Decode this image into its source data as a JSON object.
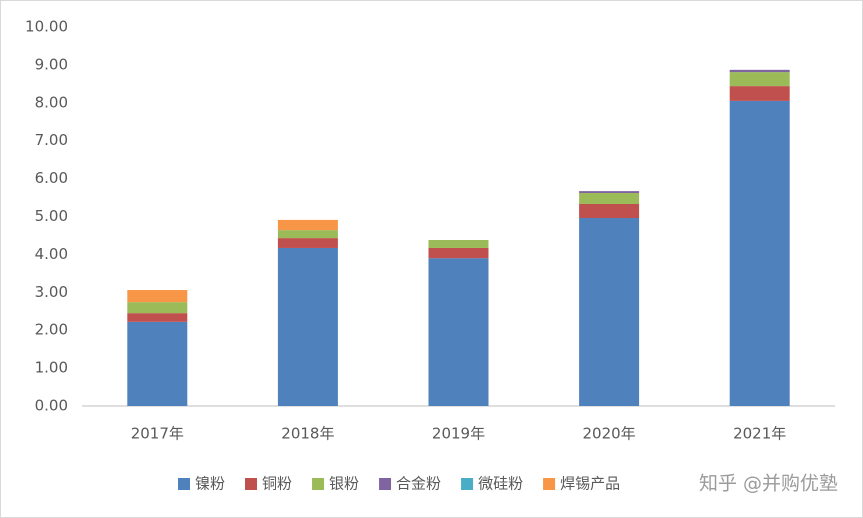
{
  "chart_data": {
    "type": "stacked_bar",
    "categories": [
      "2017年",
      "2018年",
      "2019年",
      "2020年",
      "2021年"
    ],
    "series": [
      {
        "name": "镍粉",
        "color": "#4f81bd",
        "values": [
          2.22,
          4.17,
          3.9,
          4.96,
          8.05
        ]
      },
      {
        "name": "铜粉",
        "color": "#c0504d",
        "values": [
          0.23,
          0.26,
          0.27,
          0.37,
          0.39
        ]
      },
      {
        "name": "银粉",
        "color": "#9bbb59",
        "values": [
          0.29,
          0.21,
          0.21,
          0.29,
          0.37
        ]
      },
      {
        "name": "合金粉",
        "color": "#8064a2",
        "values": [
          0,
          0,
          0,
          0.05,
          0.06
        ]
      },
      {
        "name": "微硅粉",
        "color": "#4bacc6",
        "values": [
          0,
          0,
          0,
          0,
          0
        ]
      },
      {
        "name": "焊锡产品",
        "color": "#f79646",
        "values": [
          0.32,
          0.27,
          0,
          0,
          0
        ]
      }
    ],
    "ylim": [
      0,
      10
    ],
    "yticks": [
      {
        "value": 0,
        "label": "0.00"
      },
      {
        "value": 1,
        "label": "1.00"
      },
      {
        "value": 2,
        "label": "2.00"
      },
      {
        "value": 3,
        "label": "3.00"
      },
      {
        "value": 4,
        "label": "4.00"
      },
      {
        "value": 5,
        "label": "5.00"
      },
      {
        "value": 6,
        "label": "6.00"
      },
      {
        "value": 7,
        "label": "7.00"
      },
      {
        "value": 8,
        "label": "8.00"
      },
      {
        "value": 9,
        "label": "9.00"
      },
      {
        "value": 10,
        "label": "10.00"
      }
    ],
    "grid": false,
    "legend": "bottom",
    "watermark": "知乎 @并购优塾"
  }
}
